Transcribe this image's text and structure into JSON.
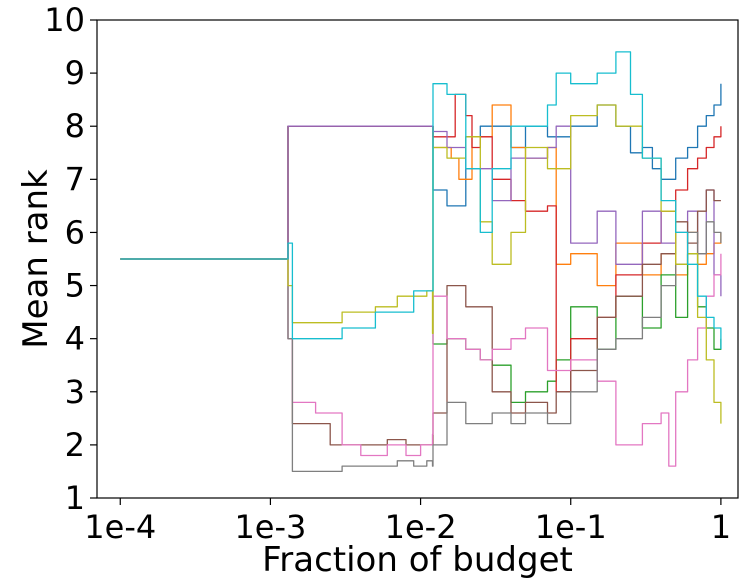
{
  "chart_data": {
    "type": "line",
    "xlabel": "Fraction of budget",
    "ylabel": "Mean rank",
    "x_scale": "log",
    "xlim": [
      7e-05,
      1.3
    ],
    "ylim": [
      1,
      10
    ],
    "x_ticks": [
      {
        "value": 0.0001,
        "label": "1e-4"
      },
      {
        "value": 0.001,
        "label": "1e-3"
      },
      {
        "value": 0.01,
        "label": "1e-2"
      },
      {
        "value": 0.1,
        "label": "1e-1"
      },
      {
        "value": 1,
        "label": "1"
      }
    ],
    "y_ticks": [
      {
        "value": 1,
        "label": "1"
      },
      {
        "value": 2,
        "label": "2"
      },
      {
        "value": 3,
        "label": "3"
      },
      {
        "value": 4,
        "label": "4"
      },
      {
        "value": 5,
        "label": "5"
      },
      {
        "value": 6,
        "label": "6"
      },
      {
        "value": 7,
        "label": "7"
      },
      {
        "value": 8,
        "label": "8"
      },
      {
        "value": 9,
        "label": "9"
      },
      {
        "value": 10,
        "label": "10"
      }
    ],
    "grid": false,
    "legend": "none",
    "series": [
      {
        "color": "#1f77b4",
        "x": [
          0.0001,
          0.0013,
          0.00131,
          0.012,
          0.0121,
          0.015,
          0.02,
          0.025,
          0.03,
          0.04,
          0.05,
          0.07,
          0.1,
          0.15,
          0.2,
          0.25,
          0.3,
          0.35,
          0.4,
          0.5,
          0.6,
          0.7,
          0.8,
          0.9,
          1.0
        ],
        "y": [
          5.5,
          5.5,
          8.0,
          8.0,
          6.8,
          6.5,
          7.8,
          8.0,
          8.0,
          7.6,
          8.0,
          7.8,
          8.0,
          8.4,
          8.0,
          7.5,
          7.6,
          7.2,
          7.0,
          7.4,
          7.6,
          8.0,
          8.2,
          8.4,
          8.8
        ]
      },
      {
        "color": "#ff7f0e",
        "x": [
          0.0001,
          0.0013,
          0.00131,
          0.012,
          0.0121,
          0.016,
          0.018,
          0.022,
          0.03,
          0.04,
          0.05,
          0.07,
          0.08,
          0.1,
          0.15,
          0.2,
          0.3,
          0.4,
          0.5,
          0.6,
          0.7,
          0.8,
          0.9,
          1.0
        ],
        "y": [
          5.5,
          5.5,
          8.0,
          8.0,
          7.6,
          7.4,
          7.0,
          7.8,
          8.4,
          7.6,
          7.4,
          7.6,
          5.4,
          5.6,
          5.0,
          5.8,
          5.2,
          5.6,
          5.2,
          6.0,
          5.4,
          5.6,
          5.8,
          6.0
        ]
      },
      {
        "color": "#2ca02c",
        "x": [
          0.0001,
          0.0013,
          0.00131,
          0.012,
          0.0121,
          0.015,
          0.02,
          0.025,
          0.03,
          0.04,
          0.05,
          0.07,
          0.08,
          0.1,
          0.15,
          0.2,
          0.3,
          0.4,
          0.5,
          0.6,
          0.7,
          0.8,
          0.9,
          1.0
        ],
        "y": [
          5.5,
          5.5,
          8.0,
          8.0,
          3.9,
          4.0,
          3.8,
          3.6,
          3.5,
          2.8,
          3.0,
          3.2,
          3.6,
          4.6,
          3.8,
          4.8,
          4.2,
          5.2,
          4.4,
          5.6,
          4.6,
          4.2,
          3.8,
          4.0
        ]
      },
      {
        "color": "#d62728",
        "x": [
          0.0001,
          0.0013,
          0.00131,
          0.012,
          0.0121,
          0.017,
          0.02,
          0.022,
          0.025,
          0.03,
          0.04,
          0.05,
          0.07,
          0.08,
          0.1,
          0.15,
          0.2,
          0.3,
          0.4,
          0.5,
          0.6,
          0.7,
          0.8,
          0.9,
          1.0
        ],
        "y": [
          5.5,
          5.5,
          8.0,
          8.0,
          7.8,
          8.6,
          8.2,
          7.6,
          7.8,
          7.0,
          6.6,
          6.4,
          6.5,
          3.0,
          4.0,
          4.4,
          5.2,
          5.8,
          6.4,
          6.8,
          7.2,
          7.4,
          7.6,
          7.8,
          8.0
        ]
      },
      {
        "color": "#9467bd",
        "x": [
          0.0001,
          0.0013,
          0.00131,
          0.012,
          0.0121,
          0.015,
          0.02,
          0.03,
          0.04,
          0.05,
          0.07,
          0.08,
          0.1,
          0.15,
          0.2,
          0.3,
          0.4,
          0.5,
          0.6,
          0.7,
          0.8,
          0.9,
          1.0
        ],
        "y": [
          5.5,
          5.5,
          8.0,
          8.0,
          7.9,
          7.6,
          7.2,
          6.6,
          7.4,
          7.4,
          7.6,
          8.0,
          5.8,
          6.4,
          5.4,
          6.4,
          5.8,
          6.0,
          6.4,
          5.6,
          6.8,
          5.2,
          4.8
        ]
      },
      {
        "color": "#8c564b",
        "x": [
          0.0001,
          0.0013,
          0.00131,
          0.0014,
          0.002,
          0.0025,
          0.004,
          0.006,
          0.008,
          0.01,
          0.012,
          0.0121,
          0.015,
          0.02,
          0.03,
          0.04,
          0.05,
          0.07,
          0.08,
          0.1,
          0.15,
          0.2,
          0.3,
          0.4,
          0.5,
          0.6,
          0.7,
          0.8,
          0.9,
          1.0
        ],
        "y": [
          5.5,
          5.5,
          4.0,
          2.4,
          2.4,
          2.0,
          2.0,
          2.1,
          2.0,
          2.0,
          2.0,
          2.6,
          5.0,
          4.6,
          3.0,
          2.6,
          2.8,
          2.6,
          3.0,
          3.4,
          4.4,
          4.8,
          5.4,
          5.6,
          6.2,
          5.8,
          6.4,
          6.8,
          6.6,
          6.6
        ]
      },
      {
        "color": "#e377c2",
        "x": [
          0.0001,
          0.0013,
          0.00131,
          0.0014,
          0.002,
          0.003,
          0.004,
          0.006,
          0.008,
          0.01,
          0.012,
          0.0121,
          0.015,
          0.02,
          0.025,
          0.03,
          0.04,
          0.05,
          0.07,
          0.08,
          0.1,
          0.15,
          0.2,
          0.3,
          0.4,
          0.45,
          0.5,
          0.6,
          0.7,
          0.8,
          0.9,
          1.0
        ],
        "y": [
          5.5,
          5.5,
          4.0,
          2.8,
          2.6,
          2.0,
          1.8,
          2.0,
          1.8,
          2.0,
          2.2,
          4.8,
          4.0,
          3.8,
          3.6,
          3.8,
          4.0,
          4.2,
          3.4,
          3.4,
          3.6,
          3.2,
          2.0,
          2.4,
          2.6,
          1.6,
          3.0,
          3.6,
          4.2,
          4.8,
          5.2,
          5.6
        ]
      },
      {
        "color": "#7f7f7f",
        "x": [
          0.0001,
          0.0013,
          0.00131,
          0.0014,
          0.002,
          0.003,
          0.005,
          0.007,
          0.009,
          0.011,
          0.012,
          0.0121,
          0.015,
          0.02,
          0.03,
          0.04,
          0.05,
          0.07,
          0.1,
          0.15,
          0.2,
          0.3,
          0.4,
          0.5,
          0.6,
          0.7,
          0.8,
          0.9,
          1.0
        ],
        "y": [
          5.5,
          5.5,
          4.0,
          1.5,
          1.5,
          1.6,
          1.6,
          1.7,
          1.6,
          1.7,
          1.6,
          2.0,
          2.8,
          2.4,
          2.6,
          2.4,
          2.6,
          2.4,
          3.0,
          3.8,
          4.0,
          4.4,
          5.0,
          5.4,
          6.0,
          5.6,
          6.2,
          6.0,
          5.8
        ]
      },
      {
        "color": "#bcbd22",
        "x": [
          0.0001,
          0.0013,
          0.00131,
          0.0014,
          0.002,
          0.003,
          0.005,
          0.007,
          0.009,
          0.011,
          0.012,
          0.0121,
          0.015,
          0.02,
          0.025,
          0.03,
          0.04,
          0.05,
          0.07,
          0.1,
          0.15,
          0.2,
          0.3,
          0.4,
          0.5,
          0.6,
          0.7,
          0.8,
          0.9,
          1.0
        ],
        "y": [
          5.5,
          5.5,
          5.0,
          4.3,
          4.3,
          4.5,
          4.6,
          4.8,
          4.8,
          4.9,
          4.1,
          7.6,
          7.4,
          7.8,
          6.2,
          5.4,
          6.0,
          7.6,
          7.2,
          8.2,
          8.4,
          8.0,
          7.4,
          6.4,
          5.4,
          5.6,
          4.4,
          3.6,
          2.8,
          2.4
        ]
      },
      {
        "color": "#17becf",
        "x": [
          0.0001,
          0.0013,
          0.00131,
          0.0014,
          0.002,
          0.003,
          0.004,
          0.005,
          0.007,
          0.009,
          0.011,
          0.012,
          0.0121,
          0.015,
          0.02,
          0.025,
          0.03,
          0.04,
          0.05,
          0.07,
          0.08,
          0.1,
          0.15,
          0.2,
          0.25,
          0.3,
          0.4,
          0.5,
          0.6,
          0.7,
          0.8,
          0.9,
          1.0
        ],
        "y": [
          5.5,
          5.5,
          5.8,
          4.0,
          4.0,
          4.2,
          4.2,
          4.5,
          4.5,
          4.9,
          4.9,
          4.9,
          8.8,
          8.6,
          7.2,
          6.0,
          7.2,
          8.0,
          8.0,
          8.4,
          9.0,
          8.8,
          9.0,
          9.4,
          8.6,
          7.4,
          6.6,
          6.0,
          5.4,
          4.8,
          4.4,
          4.2,
          3.8
        ]
      }
    ]
  }
}
